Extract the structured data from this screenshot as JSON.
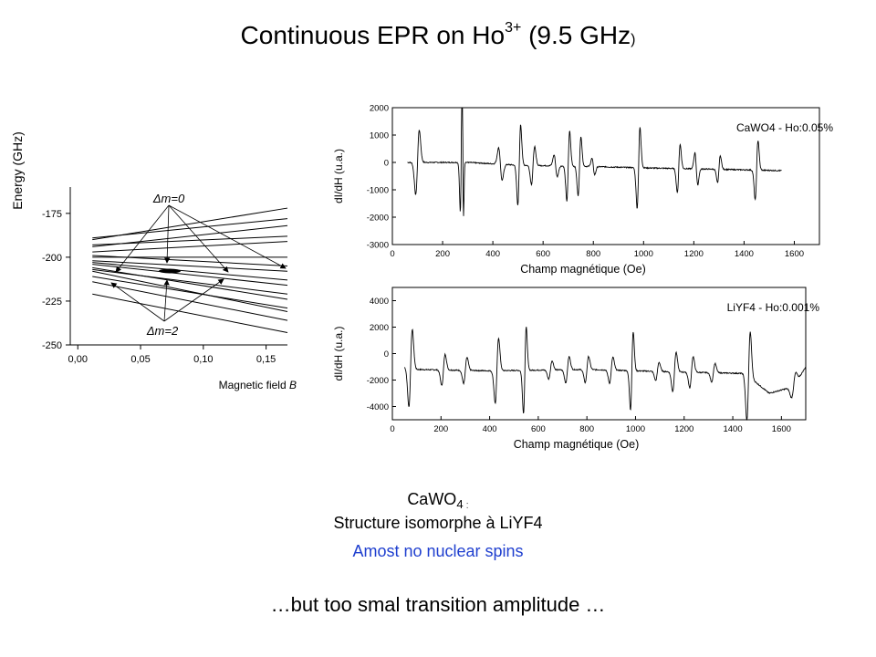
{
  "slide": {
    "title_main": "Continuous EPR on Ho",
    "title_sup": "3+",
    "title_after": " (9.5 GHz",
    "title_paren": ")",
    "caption_line1_main": "CaWO",
    "caption_line1_sub": "4",
    "caption_line1_tail": " :",
    "caption_line2": "Structure isomorphe à LiYF4",
    "caption_line3": "Amost no nuclear spins",
    "caption_line4": "…but too smal transition amplitude …",
    "caption_line3_color": "#1f3fcf"
  },
  "chart_data": [
    {
      "type": "line",
      "title": "",
      "xlabel": "Magnetic field B",
      "ylabel": "Energy (GHz)",
      "x_ticks": [
        "0,00",
        "0,05",
        "0,10",
        "0,15"
      ],
      "x_tick_values": [
        0.0,
        0.05,
        0.1,
        0.15
      ],
      "y_ticks": [
        "-175",
        "-200",
        "-225",
        "-250"
      ],
      "y_tick_values": [
        -175,
        -200,
        -225,
        -250
      ],
      "xlim": [
        -0.006,
        0.167
      ],
      "ylim": [
        -250,
        -160
      ],
      "annotations": [
        "Δm=0",
        "Δm=2"
      ],
      "series": [
        {
          "x": [
            0.0,
            0.167
          ],
          "values": [
            -190,
            -172
          ]
        },
        {
          "x": [
            0.0,
            0.167
          ],
          "values": [
            -194,
            -182
          ]
        },
        {
          "x": [
            0.0,
            0.167
          ],
          "values": [
            -197,
            -191
          ]
        },
        {
          "x": [
            0.0,
            0.167
          ],
          "values": [
            -200,
            -200
          ]
        },
        {
          "x": [
            0.0,
            0.167
          ],
          "values": [
            -202,
            -208
          ]
        },
        {
          "x": [
            0.0,
            0.167
          ],
          "values": [
            -204,
            -216
          ]
        },
        {
          "x": [
            0.0,
            0.167
          ],
          "values": [
            -206,
            -224
          ]
        },
        {
          "x": [
            0.0,
            0.167
          ],
          "values": [
            -208,
            -231
          ]
        },
        {
          "x": [
            0.0,
            0.167
          ],
          "values": [
            -189,
            -178
          ]
        },
        {
          "x": [
            0.0,
            0.167
          ],
          "values": [
            -193,
            -188
          ]
        },
        {
          "x": [
            0.0,
            0.167
          ],
          "values": [
            -199,
            -205
          ]
        },
        {
          "x": [
            0.0,
            0.167
          ],
          "values": [
            -203,
            -213
          ]
        },
        {
          "x": [
            0.0,
            0.167
          ],
          "values": [
            -207,
            -221
          ]
        },
        {
          "x": [
            0.0,
            0.167
          ],
          "values": [
            -211,
            -229
          ]
        },
        {
          "x": [
            0.0,
            0.167
          ],
          "values": [
            -214,
            -236
          ]
        },
        {
          "x": [
            0.0,
            0.167
          ],
          "values": [
            -221,
            -243
          ]
        }
      ]
    },
    {
      "type": "line",
      "title": "",
      "legend": "CaWO4 - Ho:0.05%",
      "xlabel": "Champ magnétique (Oe)",
      "ylabel": "dI/dH (u.a.)",
      "x_ticks": [
        "0",
        "200",
        "400",
        "600",
        "800",
        "1000",
        "1200",
        "1400",
        "1600"
      ],
      "y_ticks": [
        "2000",
        "1000",
        "0",
        "-1000",
        "-2000",
        "-3000"
      ],
      "xlim": [
        0,
        1700
      ],
      "ylim": [
        -3000,
        2000
      ],
      "series": [
        {
          "name": "CaWO4 - Ho:0.05%",
          "resonances": [
            {
              "x": 100,
              "amp": 1200,
              "w": 10
            },
            {
              "x": 275,
              "amp": 1900,
              "w": 6
            },
            {
              "x": 280,
              "amp": -3000,
              "w": 4
            },
            {
              "x": 430,
              "amp": -600,
              "w": 10
            },
            {
              "x": 505,
              "amp": 1500,
              "w": 8
            },
            {
              "x": 560,
              "amp": 700,
              "w": 9
            },
            {
              "x": 650,
              "amp": -400,
              "w": 9
            },
            {
              "x": 700,
              "amp": 1300,
              "w": 8
            },
            {
              "x": 745,
              "amp": 1100,
              "w": 8
            },
            {
              "x": 800,
              "amp": -300,
              "w": 8
            },
            {
              "x": 980,
              "amp": 1500,
              "w": 8
            },
            {
              "x": 1140,
              "amp": 900,
              "w": 8
            },
            {
              "x": 1210,
              "amp": -600,
              "w": 8
            },
            {
              "x": 1300,
              "amp": 500,
              "w": 8
            },
            {
              "x": 1450,
              "amp": 1100,
              "w": 8
            }
          ],
          "x_range": [
            60,
            1550
          ],
          "baseline": [
            [
              60,
              0
            ],
            [
              300,
              0
            ],
            [
              500,
              -100
            ],
            [
              800,
              -150
            ],
            [
              1000,
              -200
            ],
            [
              1300,
              -250
            ],
            [
              1550,
              -300
            ]
          ]
        }
      ]
    },
    {
      "type": "line",
      "title": "",
      "legend": "LiYF4 - Ho:0.001%",
      "xlabel": "Champ magnétique (Oe)",
      "ylabel": "dI/dH (u.a.)",
      "x_ticks": [
        "0",
        "200",
        "400",
        "600",
        "800",
        "1000",
        "1200",
        "1400",
        "1600"
      ],
      "y_ticks": [
        "4000",
        "2000",
        "0",
        "-2000",
        "-4000"
      ],
      "xlim": [
        0,
        1700
      ],
      "ylim": [
        -5000,
        5000
      ],
      "series": [
        {
          "name": "LiYF4 - Ho:0.001%",
          "resonances": [
            {
              "x": 75,
              "amp": 3000,
              "w": 10
            },
            {
              "x": 210,
              "amp": 1200,
              "w": 10
            },
            {
              "x": 300,
              "amp": 1000,
              "w": 10
            },
            {
              "x": 430,
              "amp": 2500,
              "w": 10
            },
            {
              "x": 545,
              "amp": 3300,
              "w": 8
            },
            {
              "x": 650,
              "amp": 700,
              "w": 10
            },
            {
              "x": 720,
              "amp": 1000,
              "w": 10
            },
            {
              "x": 800,
              "amp": 1000,
              "w": 10
            },
            {
              "x": 900,
              "amp": 1000,
              "w": 10
            },
            {
              "x": 985,
              "amp": 3000,
              "w": 8
            },
            {
              "x": 1090,
              "amp": 700,
              "w": 10
            },
            {
              "x": 1160,
              "amp": 1500,
              "w": 10
            },
            {
              "x": 1230,
              "amp": 1200,
              "w": 10
            },
            {
              "x": 1320,
              "amp": 700,
              "w": 10
            },
            {
              "x": 1465,
              "amp": 3500,
              "w": 10
            },
            {
              "x": 1650,
              "amp": 800,
              "w": 12
            }
          ],
          "x_range": [
            50,
            1700
          ],
          "baseline": [
            [
              50,
              -1000
            ],
            [
              100,
              -1200
            ],
            [
              400,
              -1300
            ],
            [
              800,
              -1200
            ],
            [
              1200,
              -1400
            ],
            [
              1450,
              -1500
            ],
            [
              1550,
              -3000
            ],
            [
              1650,
              -2500
            ],
            [
              1700,
              -1000
            ]
          ]
        }
      ]
    }
  ]
}
